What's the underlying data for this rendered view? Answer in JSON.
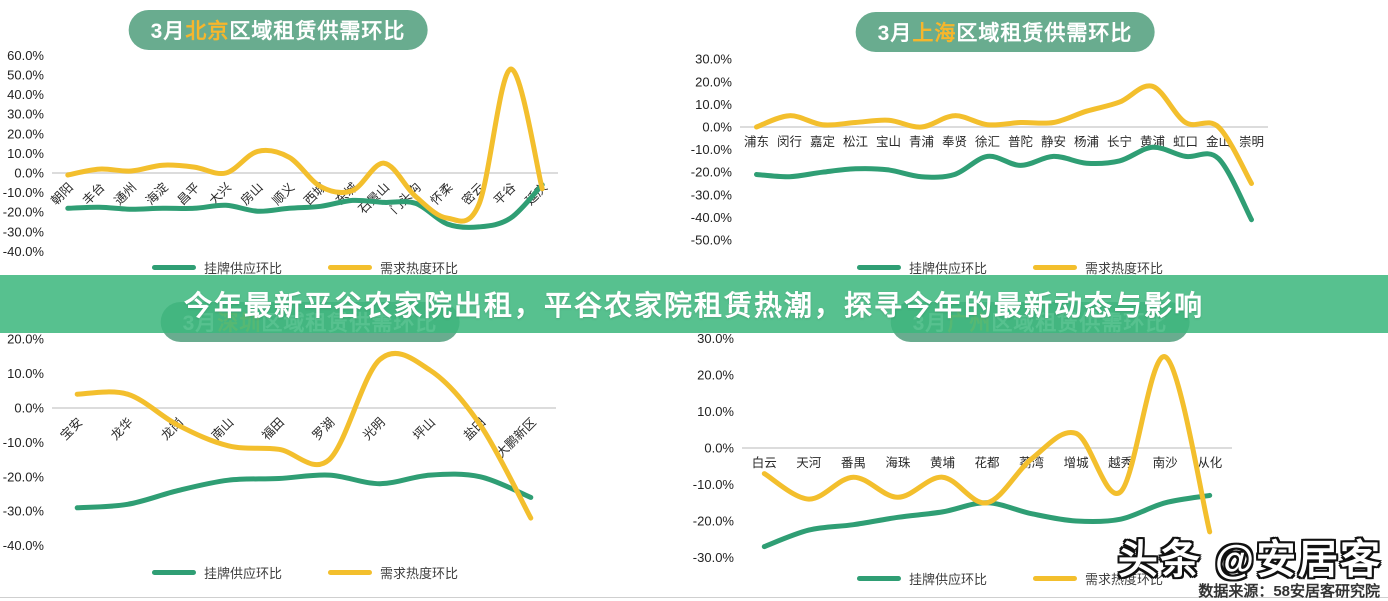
{
  "banner": {
    "text": "今年最新平谷农家院出租，平谷农家院租赁热潮，探寻今年的最新动态与影响"
  },
  "watermark": {
    "brand": "头条 @安居客",
    "source": "数据来源：58安居客研究院"
  },
  "legend": {
    "supply": "挂牌供应环比",
    "demand": "需求热度环比"
  },
  "colors": {
    "supply": "#2f9e74",
    "demand": "#f3bf2d",
    "pill": "#69ac8f",
    "banner": "#3eb87e",
    "city_highlight": "#f6b62c",
    "grid": "#dcdcdc",
    "axis_text": "#222222"
  },
  "chart_data": [
    {
      "type": "line",
      "title": {
        "prefix": "3月",
        "city": "北京",
        "suffix": "区域租赁供需环比"
      },
      "ylim": [
        -40,
        60
      ],
      "ytick_step": 10,
      "grid": "zero-line-only",
      "legend_position": "bottom",
      "categories": [
        "朝阳",
        "丰台",
        "通州",
        "海淀",
        "昌平",
        "大兴",
        "房山",
        "顺义",
        "西城",
        "东城",
        "石景山",
        "门头沟",
        "怀柔",
        "密云",
        "平谷",
        "延庆"
      ],
      "series": [
        {
          "name": "挂牌供应环比",
          "color_key": "supply",
          "values": [
            -18,
            -17.5,
            -18.5,
            -18,
            -18,
            -16.5,
            -19.5,
            -18,
            -17,
            -14,
            -15,
            -15.5,
            -26,
            -27.5,
            -23,
            -6
          ]
        },
        {
          "name": "需求热度环比",
          "color_key": "demand",
          "values": [
            -1,
            2,
            1,
            4,
            3,
            0,
            11,
            8,
            -7,
            -9,
            5,
            -12,
            -23,
            -16,
            53,
            -8
          ]
        }
      ]
    },
    {
      "type": "line",
      "title": {
        "prefix": "3月",
        "city": "上海",
        "suffix": "区域租赁供需环比"
      },
      "ylim": [
        -50,
        30
      ],
      "ytick_step": 10,
      "grid": "zero-line-only",
      "legend_position": "bottom",
      "categories": [
        "浦东",
        "闵行",
        "嘉定",
        "松江",
        "宝山",
        "青浦",
        "奉贤",
        "徐汇",
        "普陀",
        "静安",
        "杨浦",
        "长宁",
        "黄浦",
        "虹口",
        "金山",
        "崇明"
      ],
      "series": [
        {
          "name": "挂牌供应环比",
          "color_key": "supply",
          "values": [
            -21,
            -22,
            -20,
            -18.5,
            -19,
            -22,
            -21,
            -13,
            -17,
            -13,
            -16,
            -15,
            -9,
            -13,
            -14,
            -41
          ]
        },
        {
          "name": "需求热度环比",
          "color_key": "demand",
          "values": [
            0,
            5,
            1,
            2,
            3,
            0,
            5,
            1,
            2,
            2,
            7,
            11,
            18,
            2,
            0,
            -25
          ]
        }
      ]
    },
    {
      "type": "line",
      "title": {
        "prefix": "3月",
        "city": "深圳",
        "suffix": "区域租赁供需环比"
      },
      "ylim": [
        -40,
        20
      ],
      "ytick_step": 10,
      "grid": "zero-line-only",
      "legend_position": "bottom",
      "categories": [
        "宝安",
        "龙华",
        "龙岗",
        "南山",
        "福田",
        "罗湖",
        "光明",
        "坪山",
        "盐田",
        "大鹏新区"
      ],
      "series": [
        {
          "name": "挂牌供应环比",
          "color_key": "supply",
          "values": [
            -29,
            -28,
            -24,
            -21,
            -20.5,
            -19.5,
            -22,
            -19.5,
            -20,
            -26
          ]
        },
        {
          "name": "需求热度环比",
          "color_key": "demand",
          "values": [
            4,
            4,
            -5,
            -11,
            -12,
            -15,
            14,
            11,
            -5,
            -32
          ]
        }
      ]
    },
    {
      "type": "line",
      "title": {
        "prefix": "3月",
        "city": "广州",
        "suffix": "区域租赁供需环比"
      },
      "ylim": [
        -30,
        30
      ],
      "ytick_step": 10,
      "grid": "zero-line-only",
      "legend_position": "bottom",
      "categories": [
        "白云",
        "天河",
        "番禺",
        "海珠",
        "黄埔",
        "花都",
        "荔湾",
        "增城",
        "越秀",
        "南沙",
        "从化"
      ],
      "series": [
        {
          "name": "挂牌供应环比",
          "color_key": "supply",
          "values": [
            -27,
            -22.5,
            -21,
            -19,
            -17.5,
            -15,
            -18,
            -20,
            -19.5,
            -15,
            -13
          ]
        },
        {
          "name": "需求热度环比",
          "color_key": "demand",
          "values": [
            -7,
            -14,
            -8,
            -13.5,
            -8,
            -15,
            -3,
            4,
            -12,
            25,
            -23
          ]
        }
      ]
    }
  ]
}
